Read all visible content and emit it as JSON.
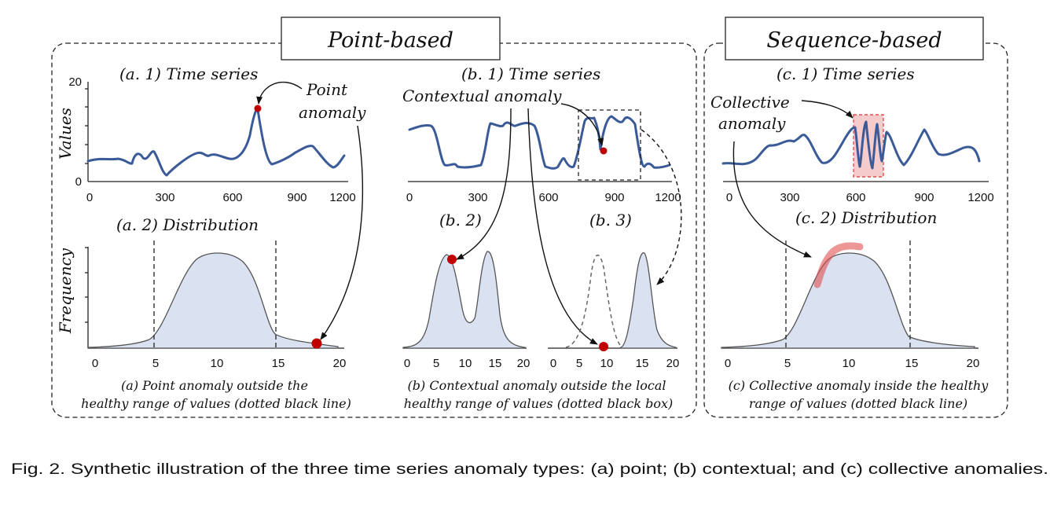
{
  "headers": {
    "point": "Point-based",
    "sequence": "Sequence-based"
  },
  "panel_a": {
    "ts_title": "(a. 1) Time series",
    "ylabel": "Values",
    "ts_yticks": [
      "20",
      "0"
    ],
    "ts_xticks": [
      "0",
      "300",
      "600",
      "900",
      "1200"
    ],
    "annotation_line1": "Point",
    "annotation_line2": "anomaly",
    "dist_title": "(a. 2) Distribution",
    "dist_ylabel": "Frequency",
    "dist_xticks": [
      "0",
      "5",
      "10",
      "15",
      "20"
    ],
    "caption_line1": "(a) Point anomaly outside  the",
    "caption_line2": "healthy range of values (dotted black line)"
  },
  "panel_b": {
    "ts_title": "(b. 1) Time series",
    "annotation": "Contextual anomaly",
    "ts_xticks": [
      "0",
      "300",
      "600",
      "900",
      "1200"
    ],
    "dist2_title": "(b. 2)",
    "dist3_title": "(b. 3)",
    "dist2_xticks": [
      "0",
      "5",
      "10",
      "15",
      "20"
    ],
    "dist3_xticks": [
      "0",
      "5",
      "10",
      "15",
      "20"
    ],
    "caption_line1": "(b) Contextual anomaly outside  the local",
    "caption_line2": "healthy range of values (dotted black box)"
  },
  "panel_c": {
    "ts_title": "(c. 1) Time series",
    "annotation_line1": "Collective",
    "annotation_line2": "anomaly",
    "ts_xticks": [
      "0",
      "300",
      "600",
      "900",
      "1200"
    ],
    "dist_title": "(c. 2) Distribution",
    "dist_xticks": [
      "0",
      "5",
      "10",
      "15",
      "20"
    ],
    "caption_line1": "(c) Collective anomaly inside the healthy",
    "caption_line2": "range of values (dotted black line)"
  },
  "figure_caption": "Fig. 2.  Synthetic illustration of the three time series anomaly types: (a) point; (b) contextual; and (c) collective anomalies.",
  "colors": {
    "series": "#3a5a98",
    "anomaly": "#c00000",
    "dist_fill": "#dae2f2",
    "highlight": "#e05050"
  }
}
